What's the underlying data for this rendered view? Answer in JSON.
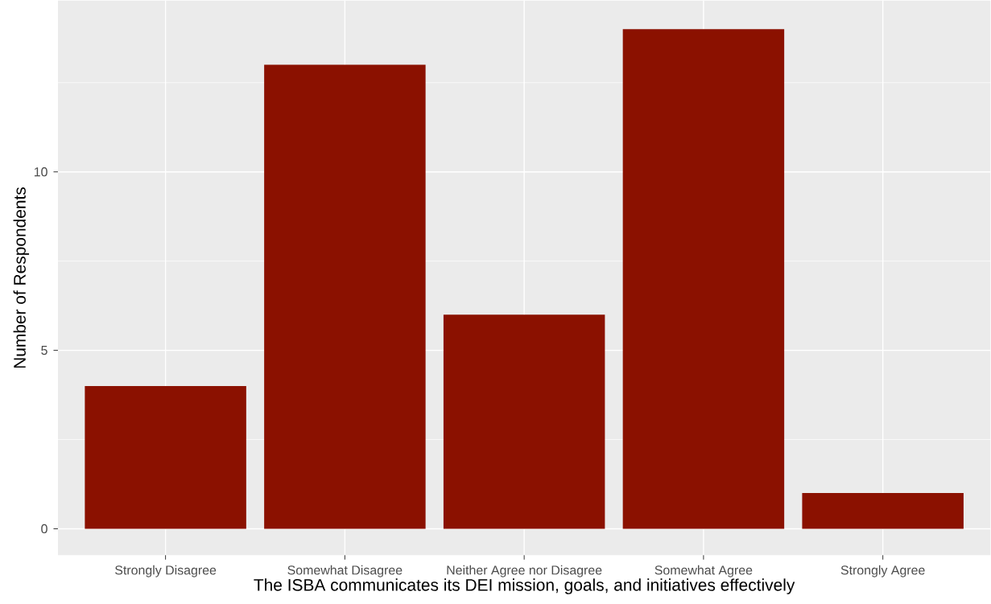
{
  "chart_data": {
    "type": "bar",
    "xlabel": "The ISBA communicates its DEI mission, goals, and initiatives effectively",
    "ylabel": "Number of Respondents",
    "categories": [
      "Strongly Disagree",
      "Somewhat Disagree",
      "Neither Agree nor Disagree",
      "Somewhat Agree",
      "Strongly Agree"
    ],
    "values": [
      4,
      13,
      6,
      14,
      1
    ],
    "color": "#8b1100",
    "ylim": [
      -0.74,
      14.8
    ],
    "yticks": [
      0,
      {
        "value": 2.5,
        "label": null
      },
      5,
      {
        "value": 7.5,
        "label": null
      },
      10,
      {
        "value": 12.5,
        "label": null
      }
    ],
    "grid": true
  }
}
